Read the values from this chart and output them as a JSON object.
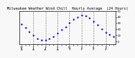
{
  "title": "Milwaukee Weather Wind Chill  Hourly Average  (24 Hours)",
  "x_hours": [
    0,
    1,
    2,
    3,
    4,
    5,
    6,
    7,
    8,
    9,
    10,
    11,
    12,
    13,
    14,
    15,
    16,
    17,
    18,
    19,
    20,
    21,
    22,
    23
  ],
  "y_values": [
    28,
    22,
    16,
    10,
    5,
    2,
    2,
    4,
    8,
    14,
    19,
    24,
    30,
    36,
    40,
    43,
    42,
    38,
    33,
    27,
    20,
    15,
    11,
    8
  ],
  "line_color": "#0000dd",
  "grid_color": "#888888",
  "bg_color": "#f8f8f8",
  "ylim": [
    -5,
    50
  ],
  "xlim": [
    -0.5,
    23.5
  ],
  "yticks": [
    0,
    10,
    20,
    30,
    40,
    50
  ],
  "title_fontsize": 3.8,
  "tick_fontsize": 2.8,
  "marker_size": 1.5,
  "vgrid_positions": [
    3,
    6,
    9,
    12,
    15,
    18,
    21
  ],
  "xtick_every": 3
}
